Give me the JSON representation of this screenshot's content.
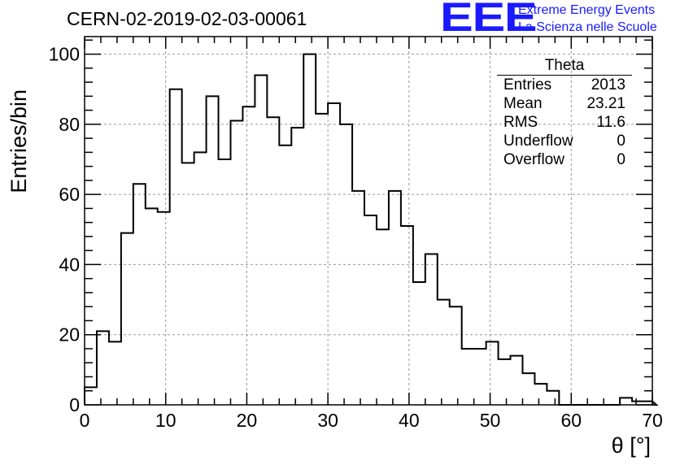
{
  "header": {
    "title": "CERN-02-2019-02-03-00061",
    "logo_text": "EEE",
    "logo_line1": "Extreme Energy Events",
    "logo_line2": "La Scienza nelle Scuole"
  },
  "colors": {
    "logo": "#1a1aff",
    "histogram": "#000000",
    "grid": "#999999"
  },
  "stats": {
    "title": "Theta",
    "rows": [
      {
        "key": "Entries",
        "value": "2013"
      },
      {
        "key": "Mean",
        "value": "23.21"
      },
      {
        "key": "RMS",
        "value": "11.6"
      },
      {
        "key": "Underflow",
        "value": "0"
      },
      {
        "key": "Overflow",
        "value": "0"
      }
    ]
  },
  "chart_data": {
    "type": "histogram",
    "title": "CERN-02-2019-02-03-00061",
    "xlabel": "θ [°]",
    "ylabel": "Entries/bin",
    "xlim": [
      0,
      70
    ],
    "ylim": [
      0,
      105
    ],
    "grid": true,
    "bin_width": 1.5,
    "bin_edges_start": 0,
    "values": [
      5,
      21,
      18,
      49,
      63,
      56,
      55,
      90,
      69,
      72,
      88,
      70,
      81,
      85,
      94,
      82,
      74,
      79,
      100,
      83,
      86,
      80,
      61,
      54,
      50,
      61,
      51,
      35,
      43,
      30,
      28,
      16,
      16,
      18,
      13,
      14,
      9,
      6,
      4,
      0,
      0,
      0,
      0,
      0,
      2,
      1,
      1,
      0
    ],
    "xticks": [
      0,
      10,
      20,
      30,
      40,
      50,
      60,
      70
    ],
    "yticks": [
      0,
      20,
      40,
      60,
      80,
      100
    ]
  }
}
